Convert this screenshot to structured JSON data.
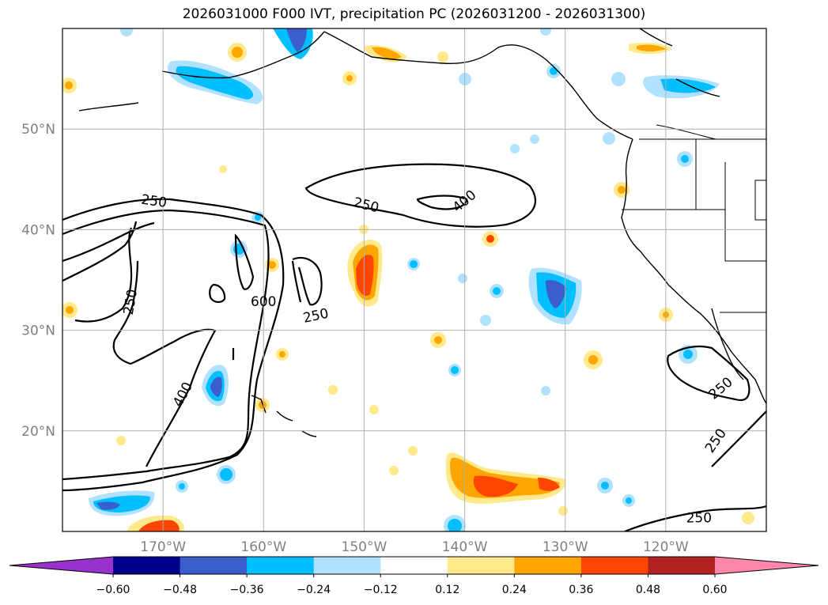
{
  "title": "2026031000 F000 IVT, precipitation PC (2026031200 - 2026031300)",
  "map": {
    "lon_range": [
      -180,
      -110
    ],
    "lat_range": [
      10,
      60
    ],
    "lon_ticks": [
      {
        "value": -170,
        "label": "170°W"
      },
      {
        "value": -160,
        "label": "160°W"
      },
      {
        "value": -150,
        "label": "150°W"
      },
      {
        "value": -140,
        "label": "140°W"
      },
      {
        "value": -130,
        "label": "130°W"
      },
      {
        "value": -120,
        "label": "120°W"
      }
    ],
    "lat_ticks": [
      {
        "value": 20,
        "label": "20°N"
      },
      {
        "value": 30,
        "label": "30°N"
      },
      {
        "value": 40,
        "label": "40°N"
      },
      {
        "value": 50,
        "label": "50°N"
      }
    ],
    "grid": true,
    "tick_label_color": "#808080",
    "contour_labels": [
      {
        "text": "250",
        "lon": -170.9,
        "lat": 42.8,
        "angle": 8
      },
      {
        "text": "250",
        "lon": -149.8,
        "lat": 42.4,
        "angle": 14
      },
      {
        "text": "400",
        "lon": -140.0,
        "lat": 42.8,
        "angle": -40
      },
      {
        "text": "250",
        "lon": -173.2,
        "lat": 32.8,
        "angle": -80
      },
      {
        "text": "600",
        "lon": -160.0,
        "lat": 32.8,
        "angle": 0
      },
      {
        "text": "250",
        "lon": -154.8,
        "lat": 31.4,
        "angle": -12
      },
      {
        "text": "400",
        "lon": -168.0,
        "lat": 23.6,
        "angle": -62
      },
      {
        "text": "250",
        "lon": -114.5,
        "lat": 24.2,
        "angle": -40
      },
      {
        "text": "250",
        "lon": -115.0,
        "lat": 19.0,
        "angle": -55
      },
      {
        "text": "250",
        "lon": -116.7,
        "lat": 11.3,
        "angle": 0
      }
    ]
  },
  "colorbar": {
    "ticks": [
      "-0.60",
      "-0.48",
      "-0.36",
      "-0.24",
      "-0.12",
      "0.12",
      "0.24",
      "0.36",
      "0.48",
      "0.60"
    ],
    "colors": [
      "#9932cc",
      "#00008b",
      "#3a5fcd",
      "#00bfff",
      "#b0e2ff",
      "#ffffff",
      "#ffe98a",
      "#ffa500",
      "#ff4500",
      "#b22222",
      "#ff88aa"
    ]
  }
}
